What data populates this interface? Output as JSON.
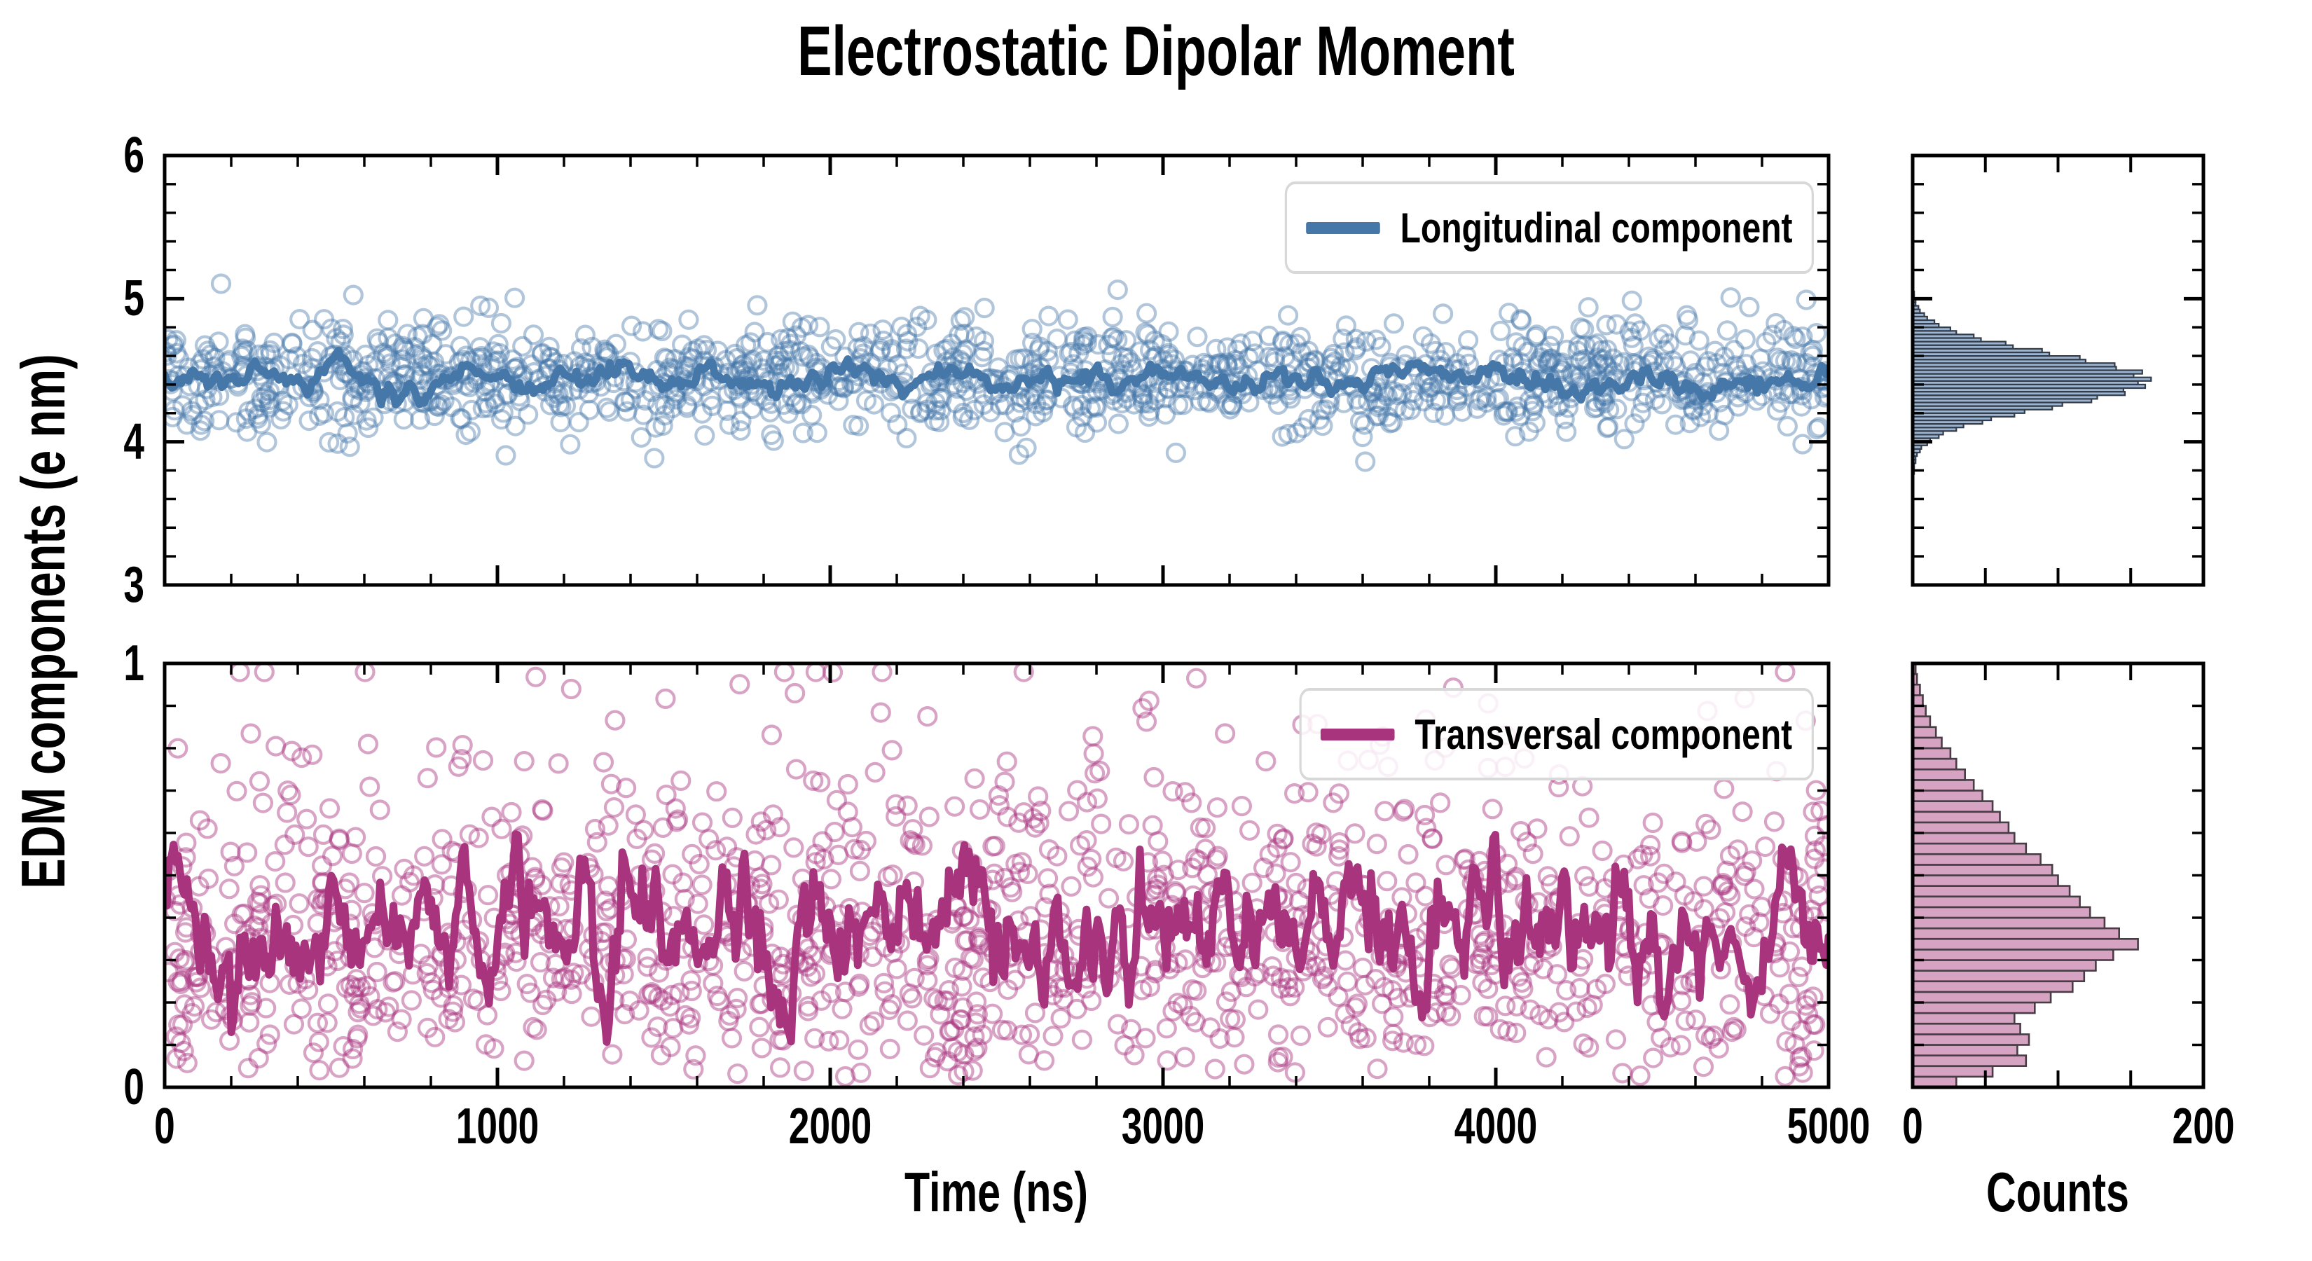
{
  "title": "Electrostatic Dipolar Moment",
  "axes": {
    "ylabel": "EDM components (e nm)",
    "xlabel_time": "Time (ns)",
    "xlabel_counts": "Counts",
    "time_ticks": {
      "labels": [
        "0",
        "1000",
        "2000",
        "3000",
        "4000",
        "5000"
      ],
      "values": [
        0,
        1000,
        2000,
        3000,
        4000,
        5000
      ],
      "minor_step": 200
    },
    "counts_ticks": {
      "labels": [
        "0",
        "200"
      ],
      "values": [
        0,
        200
      ],
      "minor_values": [
        50,
        100,
        150
      ]
    },
    "top_yticks": {
      "labels": [
        "6",
        "5",
        "4",
        "3"
      ],
      "values": [
        6,
        5,
        4,
        3
      ],
      "minor_step": 0.2,
      "range": [
        3,
        6
      ]
    },
    "bottom_yticks": {
      "labels": [
        "1",
        "0"
      ],
      "values": [
        1,
        0
      ],
      "minor_step": 0.1,
      "range": [
        0,
        1
      ]
    }
  },
  "legend": {
    "longitudinal": "Longitudinal component",
    "transversal": "Transversal component"
  },
  "colors": {
    "longitudinal_line": "#4677A9",
    "longitudinal_scatter": "rgba(70,119,169,0.42)",
    "longitudinal_hist_fill": "#9CB5D2",
    "longitudinal_hist_edge": "#333C48",
    "transversal_line": "#A8347E",
    "transversal_scatter": "rgba(168,52,126,0.45)",
    "transversal_hist_fill": "#D7A3C3",
    "transversal_hist_edge": "#483C45",
    "axis": "#000000",
    "legend_border": "#D8D8D8"
  },
  "chart_data": [
    {
      "id": "longitudinal_timeseries",
      "type": "scatter",
      "panel": "top",
      "series_name": "Longitudinal component",
      "x_range": [
        0,
        5000
      ],
      "y_range": [
        3,
        6
      ],
      "scatter": {
        "n": 1300,
        "distribution": "normal",
        "mean": 4.45,
        "sd": 0.19,
        "clip": [
          3.55,
          5.45
        ],
        "seed": 11
      },
      "mean_line": {
        "n": 700,
        "baseline": 4.44,
        "ar": 0.86,
        "step_sd": 0.03,
        "clip": [
          4.26,
          4.64
        ],
        "seed": 23
      }
    },
    {
      "id": "transversal_timeseries",
      "type": "scatter",
      "panel": "bottom",
      "series_name": "Transversal component",
      "x_range": [
        0,
        5000
      ],
      "y_range": [
        0,
        1
      ],
      "scatter": {
        "n": 1300,
        "distribution": "rayleigh",
        "sigma": 0.3,
        "clip": [
          0.02,
          0.98
        ],
        "seed": 37
      },
      "mean_line": {
        "n": 750,
        "baseline": 0.375,
        "ar": 0.8,
        "step_sd": 0.055,
        "clip": [
          0.1,
          0.66
        ],
        "seed": 41
      }
    },
    {
      "id": "longitudinal_histogram",
      "type": "bar",
      "panel": "hist_top",
      "orientation": "horizontal",
      "series_name": "Longitudinal component",
      "xlim": [
        0,
        200
      ],
      "bin_start": 3.7,
      "bin_width": 0.025,
      "counts": [
        0,
        0,
        0,
        1,
        1,
        1,
        2,
        2,
        3,
        5,
        6,
        10,
        12,
        18,
        21,
        30,
        35,
        48,
        54,
        70,
        77,
        96,
        103,
        123,
        127,
        146,
        145,
        160,
        155,
        164,
        152,
        158,
        140,
        139,
        119,
        115,
        94,
        89,
        69,
        64,
        47,
        42,
        30,
        26,
        18,
        15,
        10,
        8,
        5,
        4,
        2,
        2,
        1,
        1,
        0,
        0
      ]
    },
    {
      "id": "transversal_histogram",
      "type": "bar",
      "panel": "hist_bottom",
      "orientation": "horizontal",
      "series_name": "Transversal component",
      "xlim": [
        0,
        200
      ],
      "bin_start": 0.0,
      "bin_width": 0.025,
      "counts": [
        30,
        55,
        78,
        72,
        80,
        74,
        70,
        84,
        95,
        110,
        118,
        126,
        138,
        155,
        142,
        132,
        122,
        115,
        108,
        100,
        96,
        88,
        78,
        70,
        66,
        60,
        55,
        48,
        42,
        36,
        30,
        26,
        20,
        16,
        12,
        9,
        7,
        5,
        3,
        2
      ]
    }
  ]
}
